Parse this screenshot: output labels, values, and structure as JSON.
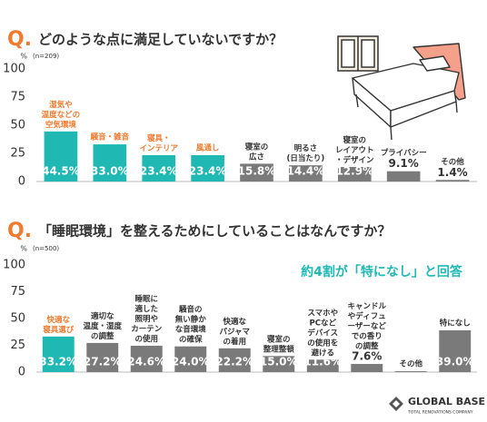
{
  "chart_data": [
    {
      "type": "bar",
      "question_mark": "Q.",
      "title": "どのような点に満足していないですか？",
      "y_label": "%",
      "note": "(n=209)",
      "categories": [
        "湿気や\n温度などの\n空気環境",
        "騒音・雑音",
        "寝具・\nインテリア",
        "風通し",
        "寝室の\n広さ",
        "明るさ\n(日当たり)",
        "寝室の\nレイアウト\n・デザイン",
        "プライバシー",
        "その他"
      ],
      "values": [
        44.5,
        33.0,
        23.4,
        23.4,
        15.8,
        14.4,
        12.9,
        9.1,
        1.4
      ],
      "value_labels": [
        "44.5%",
        "33.0%",
        "23.4%",
        "23.4%",
        "15.8%",
        "14.4%",
        "12.9%",
        "9.1%",
        "1.4%"
      ],
      "colors": [
        "#1fb8b3",
        "#1fb8b3",
        "#1fb8b3",
        "#1fb8b3",
        "#7a7a7a",
        "#7a7a7a",
        "#7a7a7a",
        "#7a7a7a",
        "#7a7a7a"
      ],
      "label_colors": [
        "#f07a2e",
        "#f07a2e",
        "#f07a2e",
        "#f07a2e",
        "#333333",
        "#333333",
        "#333333",
        "#333333",
        "#333333"
      ],
      "ylim": [
        0,
        100
      ],
      "yticks": [
        0,
        25,
        50,
        75,
        100
      ]
    },
    {
      "type": "bar",
      "question_mark": "Q.",
      "title": "「睡眠環境」を整えるためにしていることはなんですか？",
      "y_label": "%",
      "note": "(n=500)",
      "annotation": "約4割が「特になし」と回答",
      "categories": [
        "快適な\n寝具選び",
        "適切な\n温度・湿度\nの調整",
        "睡眠に\n適した\n照明や\nカーテン\nの使用",
        "騒音の\n無い静か\nな音環境\nの確保",
        "快適な\nパジャマ\nの着用",
        "寝室の\n整理整頓",
        "スマホや\nPCなど\nデバイス\nの使用を\n避ける",
        "キャンドル\nやディフュ\nーザーなど\nでの香り\nの調整",
        "その他",
        "特になし"
      ],
      "values": [
        33.2,
        27.2,
        24.6,
        24.0,
        22.2,
        15.0,
        11.6,
        7.6,
        0.8,
        39.0
      ],
      "value_labels": [
        "33.2%",
        "27.2%",
        "24.6%",
        "24.0%",
        "22.2%",
        "15.0%",
        "11.6%",
        "7.6%",
        null,
        "39.0%"
      ],
      "colors": [
        "#1fb8b3",
        "#7a7a7a",
        "#7a7a7a",
        "#7a7a7a",
        "#7a7a7a",
        "#7a7a7a",
        "#7a7a7a",
        "#7a7a7a",
        "#7a7a7a",
        "#7a7a7a"
      ],
      "label_colors": [
        "#f07a2e",
        "#333333",
        "#333333",
        "#333333",
        "#333333",
        "#333333",
        "#333333",
        "#333333",
        "#333333",
        "#333333"
      ],
      "ylim": [
        0,
        100
      ],
      "yticks": [
        0,
        25,
        50,
        75,
        100
      ]
    }
  ],
  "logo": {
    "name": "GLOBAL BASE",
    "tagline": "TOTAL RENOVATIONS COMPANY"
  }
}
